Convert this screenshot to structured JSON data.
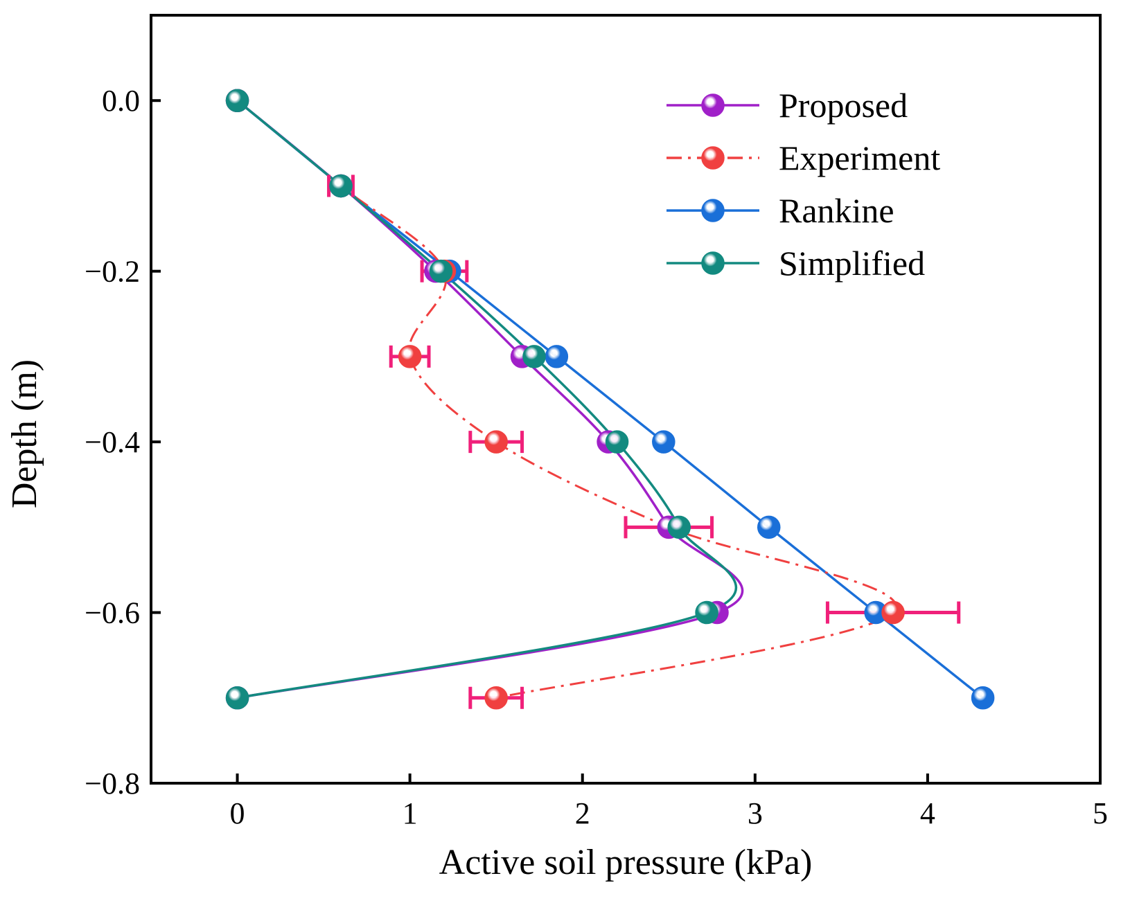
{
  "chart_data": {
    "type": "line",
    "xlabel": "Active soil pressure (kPa)",
    "ylabel": "Depth (m)",
    "xlim": [
      -0.5,
      5
    ],
    "ylim": [
      -0.8,
      0.1
    ],
    "xticks": [
      0,
      1,
      2,
      3,
      4,
      5
    ],
    "xtick_labels": [
      "0",
      "1",
      "2",
      "3",
      "4",
      "5"
    ],
    "yticks": [
      0.0,
      -0.2,
      -0.4,
      -0.6,
      -0.8
    ],
    "ytick_labels": [
      "0.0",
      "−0.2",
      "−0.4",
      "−0.6",
      "−0.8"
    ],
    "legend_position": "top-right",
    "grid": false,
    "series": [
      {
        "name": "Proposed",
        "color": "#a020c8",
        "line_style": "solid",
        "smooth": true,
        "points": [
          [
            0,
            0
          ],
          [
            0.6,
            -0.1
          ],
          [
            1.15,
            -0.2
          ],
          [
            1.65,
            -0.3
          ],
          [
            2.15,
            -0.4
          ],
          [
            2.5,
            -0.5
          ],
          [
            2.78,
            -0.6
          ],
          [
            0,
            -0.7
          ]
        ]
      },
      {
        "name": "Experiment",
        "color": "#f04040",
        "line_style": "dash-dot",
        "smooth": true,
        "points": [
          [
            0,
            0
          ],
          [
            0.6,
            -0.1
          ],
          [
            1.2,
            -0.2
          ],
          [
            1.0,
            -0.3
          ],
          [
            1.5,
            -0.4
          ],
          [
            2.5,
            -0.5
          ],
          [
            3.8,
            -0.6
          ],
          [
            1.5,
            -0.7
          ]
        ],
        "error_x": [
          null,
          0.07,
          0.13,
          0.11,
          0.15,
          0.25,
          0.38,
          0.15
        ],
        "error_color": "#f0207a"
      },
      {
        "name": "Rankine",
        "color": "#1a6fd8",
        "line_style": "solid",
        "smooth": false,
        "points": [
          [
            0,
            0
          ],
          [
            0.6,
            -0.1
          ],
          [
            1.23,
            -0.2
          ],
          [
            1.85,
            -0.3
          ],
          [
            2.47,
            -0.4
          ],
          [
            3.08,
            -0.5
          ],
          [
            3.7,
            -0.6
          ],
          [
            4.32,
            -0.7
          ]
        ]
      },
      {
        "name": "Simplified",
        "color": "#138a80",
        "line_style": "solid",
        "smooth": true,
        "points": [
          [
            0,
            0
          ],
          [
            0.6,
            -0.1
          ],
          [
            1.18,
            -0.2
          ],
          [
            1.72,
            -0.3
          ],
          [
            2.2,
            -0.4
          ],
          [
            2.56,
            -0.5
          ],
          [
            2.72,
            -0.6
          ],
          [
            0,
            -0.7
          ]
        ]
      }
    ]
  }
}
